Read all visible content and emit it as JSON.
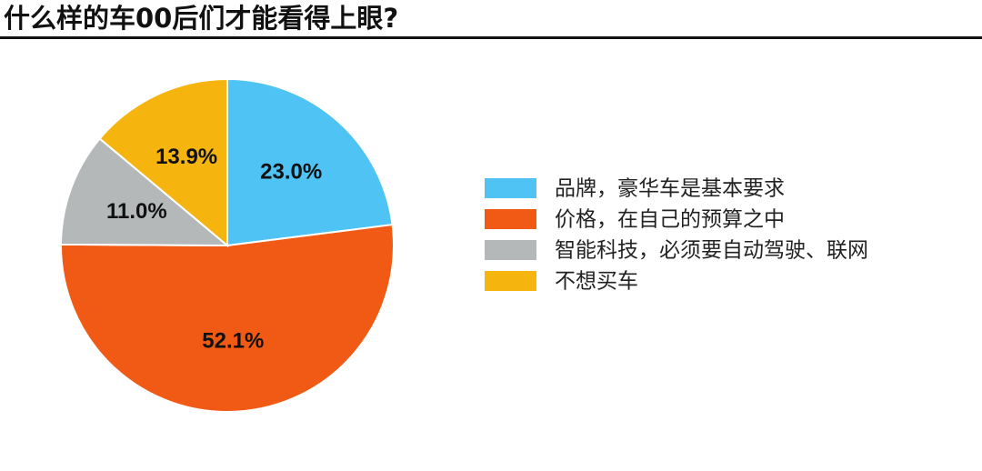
{
  "chart_data": {
    "type": "pie",
    "title": "什么样的车00后们才能看得上眼?",
    "categories": [
      "品牌，豪华车是基本要求",
      "价格，在自己的预算之中",
      "智能科技，必须要自动驾驶、联网",
      "不想买车"
    ],
    "values": [
      23.0,
      52.1,
      11.0,
      13.9
    ],
    "value_labels": [
      "23.0%",
      "52.1%",
      "11.0%",
      "13.9%"
    ],
    "colors": [
      "#4fc3f4",
      "#f05a14",
      "#b4b8b8",
      "#f5b50e"
    ],
    "legend": "right"
  }
}
